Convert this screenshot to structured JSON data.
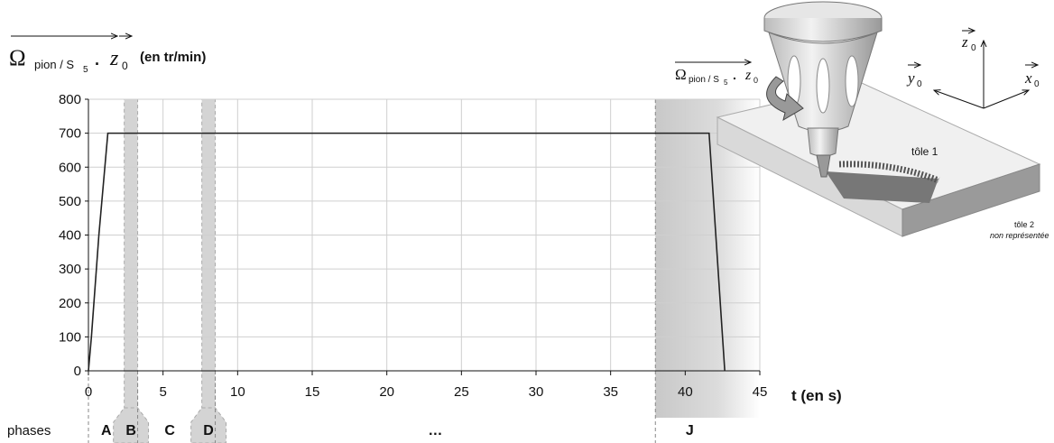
{
  "chart_data": {
    "type": "line",
    "ylabel": {
      "symbol": "Ω",
      "sub": "pion / S",
      "subsub": "5",
      "dot": ".",
      "vector": "z",
      "vector_sub": "0",
      "unit": "(en tr/min)"
    },
    "xlabel": "t (en s)",
    "x": [
      0,
      0.2,
      0.7,
      1.3,
      41.6,
      42.65
    ],
    "series": [
      {
        "color": "#222222",
        "values": [
          0,
          100,
          400,
          700,
          700,
          0
        ]
      }
    ],
    "xlim": [
      0,
      45
    ],
    "ylim": [
      0,
      800
    ],
    "xticks": [
      0,
      5,
      10,
      15,
      20,
      25,
      30,
      35,
      40,
      45
    ],
    "yticks": [
      0,
      100,
      200,
      300,
      400,
      500,
      600,
      700,
      800
    ],
    "grid": true,
    "phases_label": "phases",
    "phases": [
      {
        "label": "A",
        "start": 0,
        "end": 2.4,
        "shaded": false
      },
      {
        "label": "B",
        "start": 2.4,
        "end": 3.3,
        "shaded": true
      },
      {
        "label": "C",
        "start": 3.3,
        "end": 7.6,
        "shaded": false
      },
      {
        "label": "D",
        "start": 7.6,
        "end": 8.5,
        "shaded": true
      },
      {
        "label": "…",
        "start": 8.5,
        "end": 38,
        "shaded": false
      },
      {
        "label": "J",
        "start": 38,
        "end": 42.6,
        "shaded": true
      }
    ]
  },
  "illustration": {
    "omega": "Ω",
    "omega_sub": "pion / S",
    "omega_subsub": "5",
    "dot": ".",
    "z": "z",
    "z_sub": "0",
    "axis_z": "z",
    "axis_z_sub": "0",
    "axis_y": "y",
    "axis_y_sub": "0",
    "axis_x": "x",
    "axis_x_sub": "0",
    "plate1": "tôle 1",
    "plate2": "tôle 2",
    "plate2_note": "non représentée"
  }
}
